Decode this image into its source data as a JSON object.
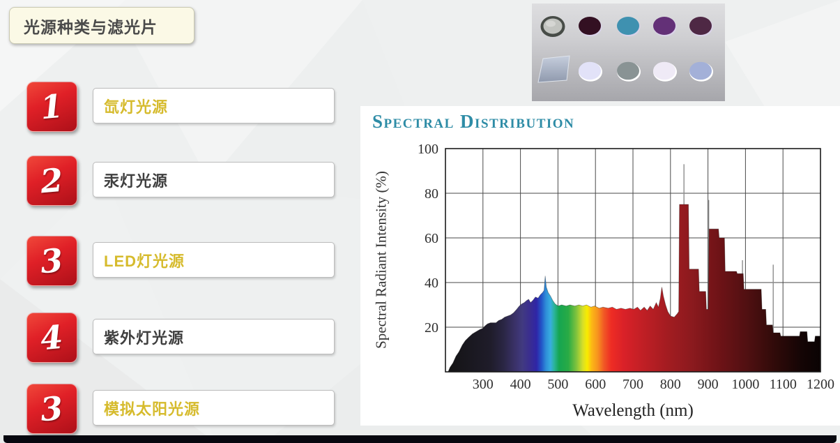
{
  "slide": {
    "title": "光源种类与滤光片",
    "background_color": "#eef0f0",
    "footer_bar_color": "#07070f"
  },
  "items": [
    {
      "number": "1",
      "label": "氙灯光源",
      "label_color": "#d6bb2d"
    },
    {
      "number": "2",
      "label": "汞灯光源",
      "label_color": "#3f3f3f"
    },
    {
      "number": "3",
      "label": "LED灯光源",
      "label_color": "#d6bb2d"
    },
    {
      "number": "4",
      "label": "紫外灯光源",
      "label_color": "#3f3f3f"
    },
    {
      "number": "3",
      "label": "模拟太阳光源",
      "label_color": "#d6bb2d"
    }
  ],
  "filters_image": {
    "background_top": "#dedee0",
    "background_bottom": "#a6a6ab",
    "row1": [
      {
        "name": "gray-lens-filter",
        "fill": "#c2c4c0",
        "ring": "#474c47",
        "shape": "ellipse"
      },
      {
        "name": "dark-plum-filter",
        "fill": "#331022",
        "ring": "#d9d2e8",
        "shape": "ellipse"
      },
      {
        "name": "teal-filter",
        "fill": "#3f91b0",
        "ring": "#d9d2e8",
        "shape": "ellipse"
      },
      {
        "name": "purple-filter",
        "fill": "#633077",
        "ring": "#d9d2e8",
        "shape": "ellipse"
      },
      {
        "name": "dark-mauve-filter",
        "fill": "#4e2844",
        "ring": "#d9d2e8",
        "shape": "ellipse"
      }
    ],
    "row2": [
      {
        "name": "square-glass-filter",
        "fill": "#bcc4d5",
        "ring": "#e8ecf2",
        "shape": "square"
      },
      {
        "name": "lavender-white-filter",
        "fill": "#e2e2f8",
        "ring": "#ffffff",
        "shape": "ellipse"
      },
      {
        "name": "gray-filter",
        "fill": "#899394",
        "ring": "#ffffff",
        "shape": "ellipse"
      },
      {
        "name": "white-filter",
        "fill": "#efeaf6",
        "ring": "#ffffff",
        "shape": "ellipse"
      },
      {
        "name": "periwinkle-filter",
        "fill": "#a3b0d8",
        "ring": "#ffffff",
        "shape": "ellipse"
      }
    ]
  },
  "chart_data": {
    "type": "area",
    "title": "Spectral Distribution",
    "title_color": "#2e8ca6",
    "xlabel": "Wavelength (nm)",
    "ylabel": "Spectral Radiant Intensity (%)",
    "xlim": [
      200,
      1200
    ],
    "ylim": [
      0,
      100
    ],
    "x_ticks": [
      300,
      400,
      500,
      600,
      700,
      800,
      900,
      1000,
      1100,
      1200
    ],
    "y_ticks": [
      20,
      40,
      60,
      80,
      100
    ],
    "grid": true,
    "series_name": "Xenon lamp spectral radiant intensity",
    "points": [
      [
        200,
        0
      ],
      [
        207,
        0
      ],
      [
        212,
        2
      ],
      [
        220,
        4
      ],
      [
        228,
        7
      ],
      [
        236,
        9
      ],
      [
        245,
        12
      ],
      [
        253,
        14
      ],
      [
        262,
        15.5
      ],
      [
        272,
        17
      ],
      [
        282,
        18
      ],
      [
        292,
        19
      ],
      [
        300,
        19.5
      ],
      [
        305,
        20.5
      ],
      [
        312,
        21.5
      ],
      [
        320,
        22
      ],
      [
        335,
        22
      ],
      [
        342,
        23
      ],
      [
        350,
        23.5
      ],
      [
        358,
        24.5
      ],
      [
        366,
        25
      ],
      [
        374,
        25.5
      ],
      [
        382,
        26.5
      ],
      [
        390,
        28
      ],
      [
        397,
        29.5
      ],
      [
        404,
        30.5
      ],
      [
        410,
        31
      ],
      [
        417,
        32
      ],
      [
        422,
        32.5
      ],
      [
        427,
        31
      ],
      [
        433,
        32
      ],
      [
        440,
        33.5
      ],
      [
        447,
        33
      ],
      [
        453,
        34.5
      ],
      [
        459,
        35.5
      ],
      [
        463,
        36.5
      ],
      [
        466,
        43
      ],
      [
        469,
        38
      ],
      [
        474,
        35.5
      ],
      [
        480,
        34
      ],
      [
        486,
        32
      ],
      [
        492,
        30.5
      ],
      [
        500,
        29.5
      ],
      [
        510,
        30
      ],
      [
        522,
        29.5
      ],
      [
        532,
        30
      ],
      [
        545,
        29.5
      ],
      [
        556,
        30
      ],
      [
        566,
        29.5
      ],
      [
        576,
        30
      ],
      [
        588,
        29
      ],
      [
        598,
        29.5
      ],
      [
        610,
        28.5
      ],
      [
        620,
        29
      ],
      [
        634,
        28.5
      ],
      [
        645,
        29
      ],
      [
        656,
        28
      ],
      [
        668,
        28.5
      ],
      [
        680,
        28
      ],
      [
        692,
        28.5
      ],
      [
        702,
        28
      ],
      [
        712,
        29
      ],
      [
        720,
        27.5
      ],
      [
        730,
        29
      ],
      [
        738,
        27.5
      ],
      [
        746,
        29.5
      ],
      [
        754,
        28
      ],
      [
        762,
        31
      ],
      [
        768,
        29
      ],
      [
        773,
        33
      ],
      [
        777,
        38
      ],
      [
        781,
        34
      ],
      [
        787,
        30
      ],
      [
        793,
        27
      ],
      [
        800,
        25
      ],
      [
        810,
        24.5
      ],
      [
        818,
        26
      ],
      [
        822,
        27
      ],
      [
        824,
        75
      ],
      [
        848,
        75
      ],
      [
        850,
        46
      ],
      [
        875,
        46
      ],
      [
        877,
        36
      ],
      [
        894,
        36
      ],
      [
        896,
        28
      ],
      [
        901,
        28
      ],
      [
        903,
        64
      ],
      [
        928,
        64
      ],
      [
        930,
        60
      ],
      [
        944,
        60
      ],
      [
        946,
        45
      ],
      [
        976,
        45
      ],
      [
        978,
        44
      ],
      [
        994,
        44
      ],
      [
        996,
        37
      ],
      [
        1042,
        37
      ],
      [
        1044,
        28
      ],
      [
        1054,
        28
      ],
      [
        1056,
        21
      ],
      [
        1072,
        21
      ],
      [
        1074,
        17.5
      ],
      [
        1092,
        17.5
      ],
      [
        1094,
        16
      ],
      [
        1144,
        16
      ],
      [
        1146,
        18
      ],
      [
        1164,
        18
      ],
      [
        1166,
        13.5
      ],
      [
        1184,
        13.5
      ],
      [
        1186,
        16
      ],
      [
        1200,
        16
      ]
    ],
    "spike_lines": [
      [
        836,
        93
      ],
      [
        902,
        77
      ],
      [
        992,
        50
      ],
      [
        1074,
        48
      ]
    ],
    "spectrum_gradient": [
      [
        200,
        "#131313"
      ],
      [
        320,
        "#1f1c2a"
      ],
      [
        355,
        "#2a2644"
      ],
      [
        385,
        "#3a3168"
      ],
      [
        405,
        "#413a80"
      ],
      [
        425,
        "#3a2d90"
      ],
      [
        443,
        "#2f25a6"
      ],
      [
        456,
        "#2355c8"
      ],
      [
        468,
        "#2e8ed8"
      ],
      [
        480,
        "#38ade0"
      ],
      [
        490,
        "#2bb49a"
      ],
      [
        503,
        "#15a551"
      ],
      [
        528,
        "#2aab45"
      ],
      [
        550,
        "#84c43d"
      ],
      [
        566,
        "#d6de2a"
      ],
      [
        578,
        "#f8ec00"
      ],
      [
        590,
        "#fcb815"
      ],
      [
        606,
        "#f7941e"
      ],
      [
        622,
        "#f15a25"
      ],
      [
        642,
        "#ee2c24"
      ],
      [
        675,
        "#da2128"
      ],
      [
        725,
        "#c11f25"
      ],
      [
        790,
        "#a41c21"
      ],
      [
        855,
        "#8c1a1e"
      ],
      [
        925,
        "#701317"
      ],
      [
        1000,
        "#521012"
      ],
      [
        1080,
        "#2f0a09"
      ],
      [
        1150,
        "#140505"
      ],
      [
        1200,
        "#0a0303"
      ]
    ]
  }
}
